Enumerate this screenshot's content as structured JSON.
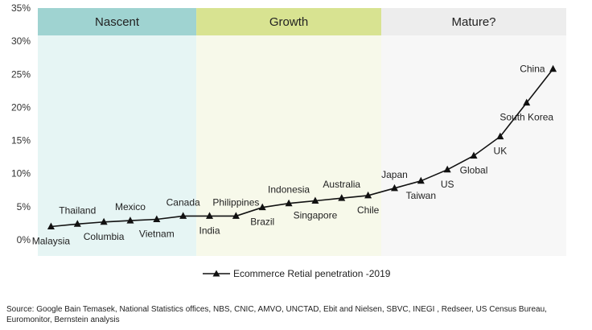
{
  "chart_data": {
    "type": "line",
    "y_ticks": [
      "0%",
      "5%",
      "10%",
      "15%",
      "20%",
      "25%",
      "30%",
      "35%"
    ],
    "ylim": [
      0,
      35
    ],
    "phases": [
      {
        "label": "Nascent",
        "band_color": "#e6f5f4",
        "header_color": "#9fd3d1",
        "start": 0,
        "end": 6
      },
      {
        "label": "Growth",
        "band_color": "#f7f9ea",
        "header_color": "#d8e391",
        "start": 6,
        "end": 13
      },
      {
        "label": "Mature?",
        "band_color": "#f7f7f7",
        "header_color": "#ededed",
        "start": 13,
        "end": 20
      }
    ],
    "series": [
      {
        "name": "Ecommerce Retial penetration -2019",
        "color": "#111111",
        "marker": "triangle",
        "points": [
          {
            "label": "Malaysia",
            "value": 2.0,
            "pos": "below"
          },
          {
            "label": "Thailand",
            "value": 2.4,
            "pos": "above"
          },
          {
            "label": "Columbia",
            "value": 2.7,
            "pos": "below"
          },
          {
            "label": "Mexico",
            "value": 2.9,
            "pos": "above"
          },
          {
            "label": "Vietnam",
            "value": 3.1,
            "pos": "below"
          },
          {
            "label": "Canada",
            "value": 3.6,
            "pos": "above"
          },
          {
            "label": "India",
            "value": 3.6,
            "pos": "below"
          },
          {
            "label": "Philippines",
            "value": 3.6,
            "pos": "above"
          },
          {
            "label": "Brazil",
            "value": 4.9,
            "pos": "below"
          },
          {
            "label": "Indonesia",
            "value": 5.5,
            "pos": "above"
          },
          {
            "label": "Singapore",
            "value": 5.9,
            "pos": "below"
          },
          {
            "label": "Australia",
            "value": 6.3,
            "pos": "above"
          },
          {
            "label": "Chile",
            "value": 6.7,
            "pos": "below"
          },
          {
            "label": "Japan",
            "value": 7.8,
            "pos": "above"
          },
          {
            "label": "Taiwan",
            "value": 8.9,
            "pos": "below"
          },
          {
            "label": "US",
            "value": 10.6,
            "pos": "below"
          },
          {
            "label": "Global",
            "value": 12.7,
            "pos": "below"
          },
          {
            "label": "UK",
            "value": 15.6,
            "pos": "below"
          },
          {
            "label": "South Korea",
            "value": 20.7,
            "pos": "below"
          },
          {
            "label": "China",
            "value": 25.8,
            "pos": "left"
          }
        ]
      }
    ]
  },
  "legend": {
    "label": "Ecommerce Retial penetration -2019"
  },
  "source": "Source: Google Bain Temasek, National Statistics offices, NBS, CNIC, AMVO, UNCTAD, Ebit and Nielsen, SBVC, INEGI , Redseer, US Census Bureau, Euromonitor, Bernstein analysis"
}
